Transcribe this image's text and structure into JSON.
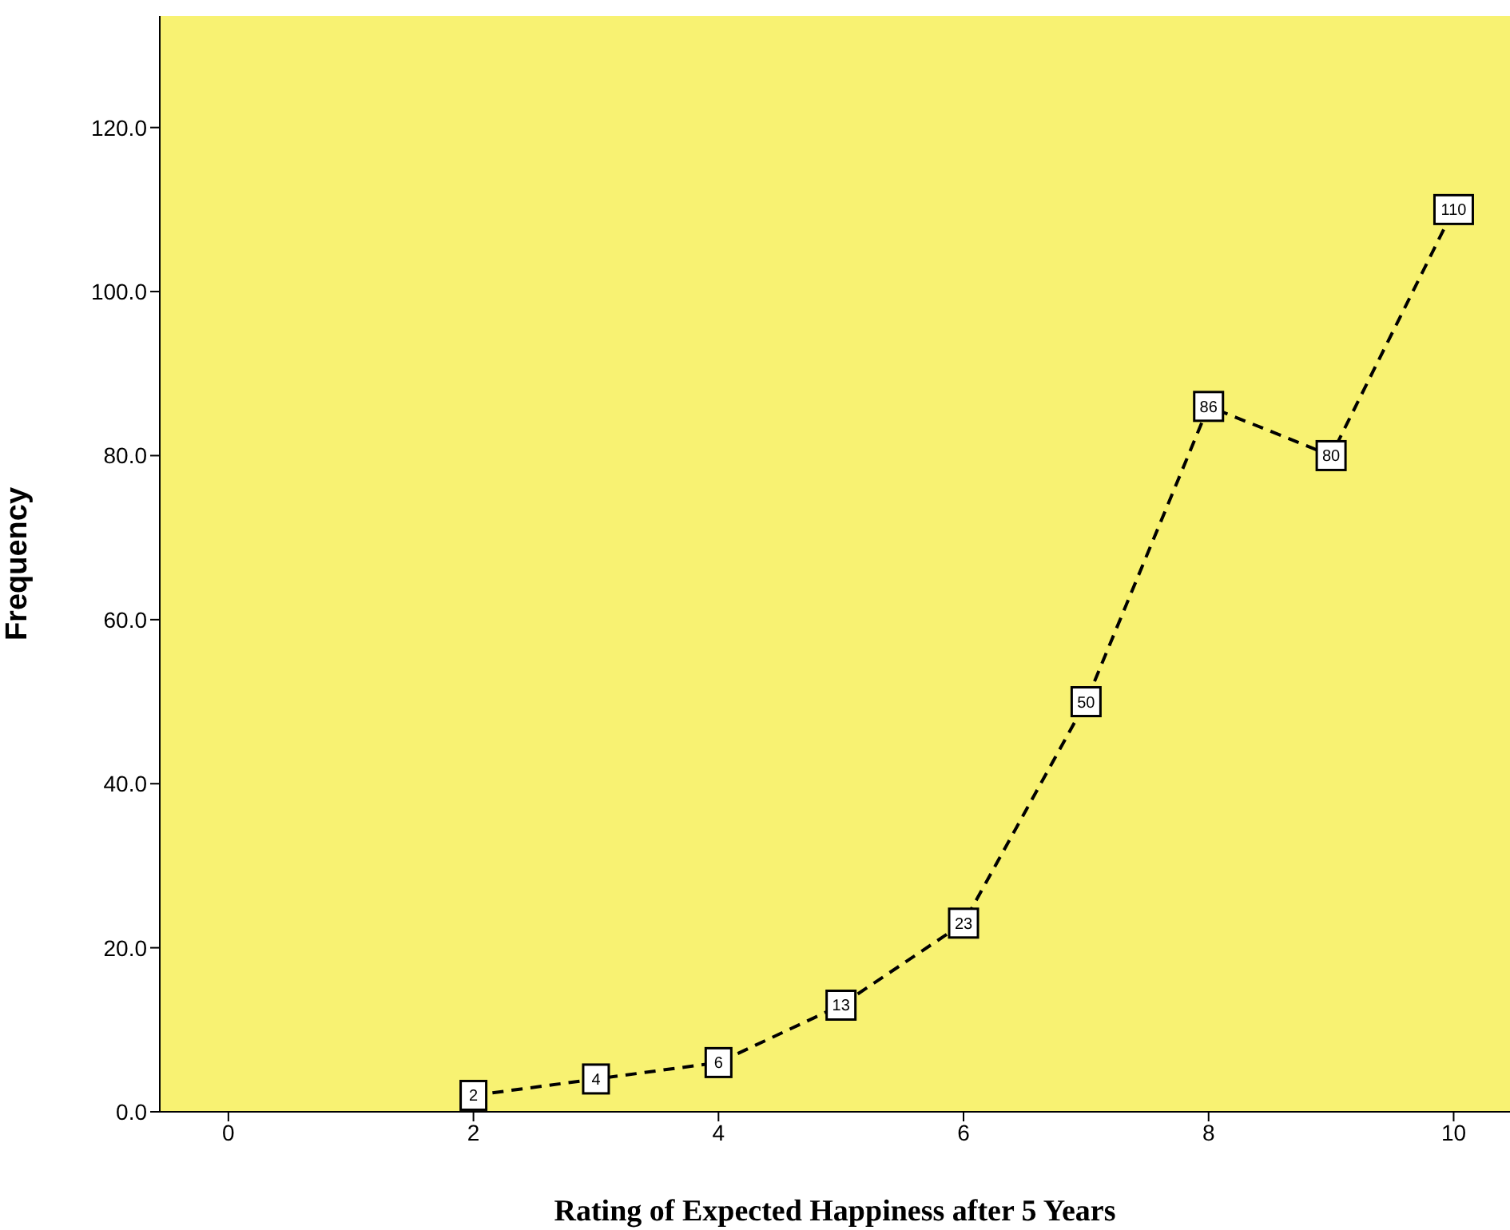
{
  "chart_data": {
    "type": "line",
    "xlabel": "Rating of Expected Happiness after 5 Years",
    "ylabel": "Frequency",
    "x": [
      2,
      3,
      4,
      5,
      6,
      7,
      8,
      9,
      10
    ],
    "series": [
      {
        "color": "#000000",
        "values": [
          2,
          4,
          6,
          13,
          23,
          50,
          86,
          80,
          110
        ]
      }
    ],
    "xlim": [
      -0.56,
      10.46
    ],
    "xticks": [
      0,
      2,
      4,
      6,
      8,
      10
    ],
    "ylim": [
      0,
      133.6
    ],
    "yticks": [
      {
        "value": 0,
        "label": "0.0"
      },
      {
        "value": 20,
        "label": "20.0"
      },
      {
        "value": 40,
        "label": "40.0"
      },
      {
        "value": 60,
        "label": "60.0"
      },
      {
        "value": 80,
        "label": "80.0"
      },
      {
        "value": 100,
        "label": "100.0"
      },
      {
        "value": 120,
        "label": "120.0"
      }
    ],
    "line_style": "dashed",
    "marker": "square",
    "data_labels": true,
    "grid": false,
    "legend": false
  }
}
